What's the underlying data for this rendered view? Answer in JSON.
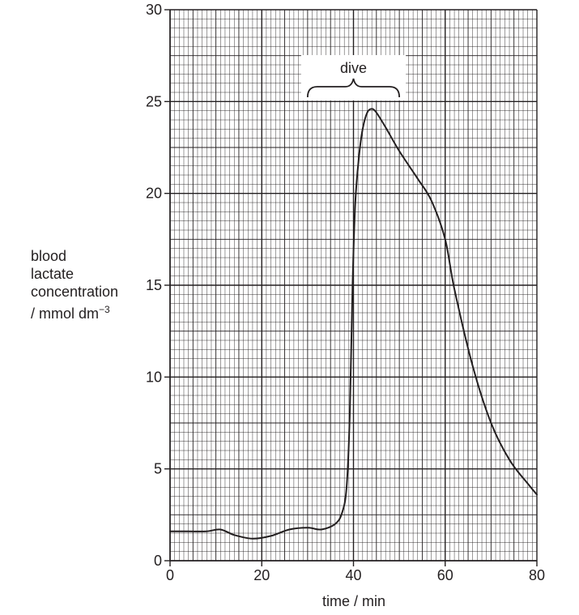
{
  "chart_data": {
    "type": "line",
    "title": "",
    "xlabel": "time / min",
    "ylabel": {
      "lines": [
        "blood",
        "lactate",
        "concentration",
        "/ mmol dm"
      ],
      "superscript": "−3"
    },
    "xlim": [
      0,
      80
    ],
    "ylim": [
      0,
      30
    ],
    "x_ticks": [
      0,
      20,
      40,
      60,
      80
    ],
    "y_ticks": [
      0,
      5,
      10,
      15,
      20,
      25,
      30
    ],
    "x_tick_labels": [
      "0",
      "20",
      "40",
      "60",
      "80"
    ],
    "y_tick_labels": [
      "0",
      "5",
      "10",
      "15",
      "20",
      "25",
      "30"
    ],
    "grid": true,
    "line_color": "#231f20",
    "annotation": {
      "text": "dive",
      "x_start": 30,
      "x_end": 50
    },
    "series": [
      {
        "x": [
          0,
          4,
          8,
          11,
          14,
          18,
          22,
          26,
          30,
          33,
          36,
          37.5,
          38.5,
          39.2,
          39.8,
          40.4,
          41.2,
          42,
          43,
          44,
          45,
          47,
          50,
          54,
          57,
          60,
          62,
          66,
          70,
          74,
          78,
          80
        ],
        "y": [
          1.6,
          1.6,
          1.6,
          1.7,
          1.4,
          1.2,
          1.35,
          1.7,
          1.8,
          1.7,
          2.0,
          2.6,
          4.0,
          8.0,
          15.0,
          19.5,
          22.0,
          23.5,
          24.4,
          24.6,
          24.4,
          23.6,
          22.3,
          20.8,
          19.6,
          17.5,
          14.8,
          10.6,
          7.5,
          5.5,
          4.2,
          3.6
        ]
      }
    ]
  }
}
